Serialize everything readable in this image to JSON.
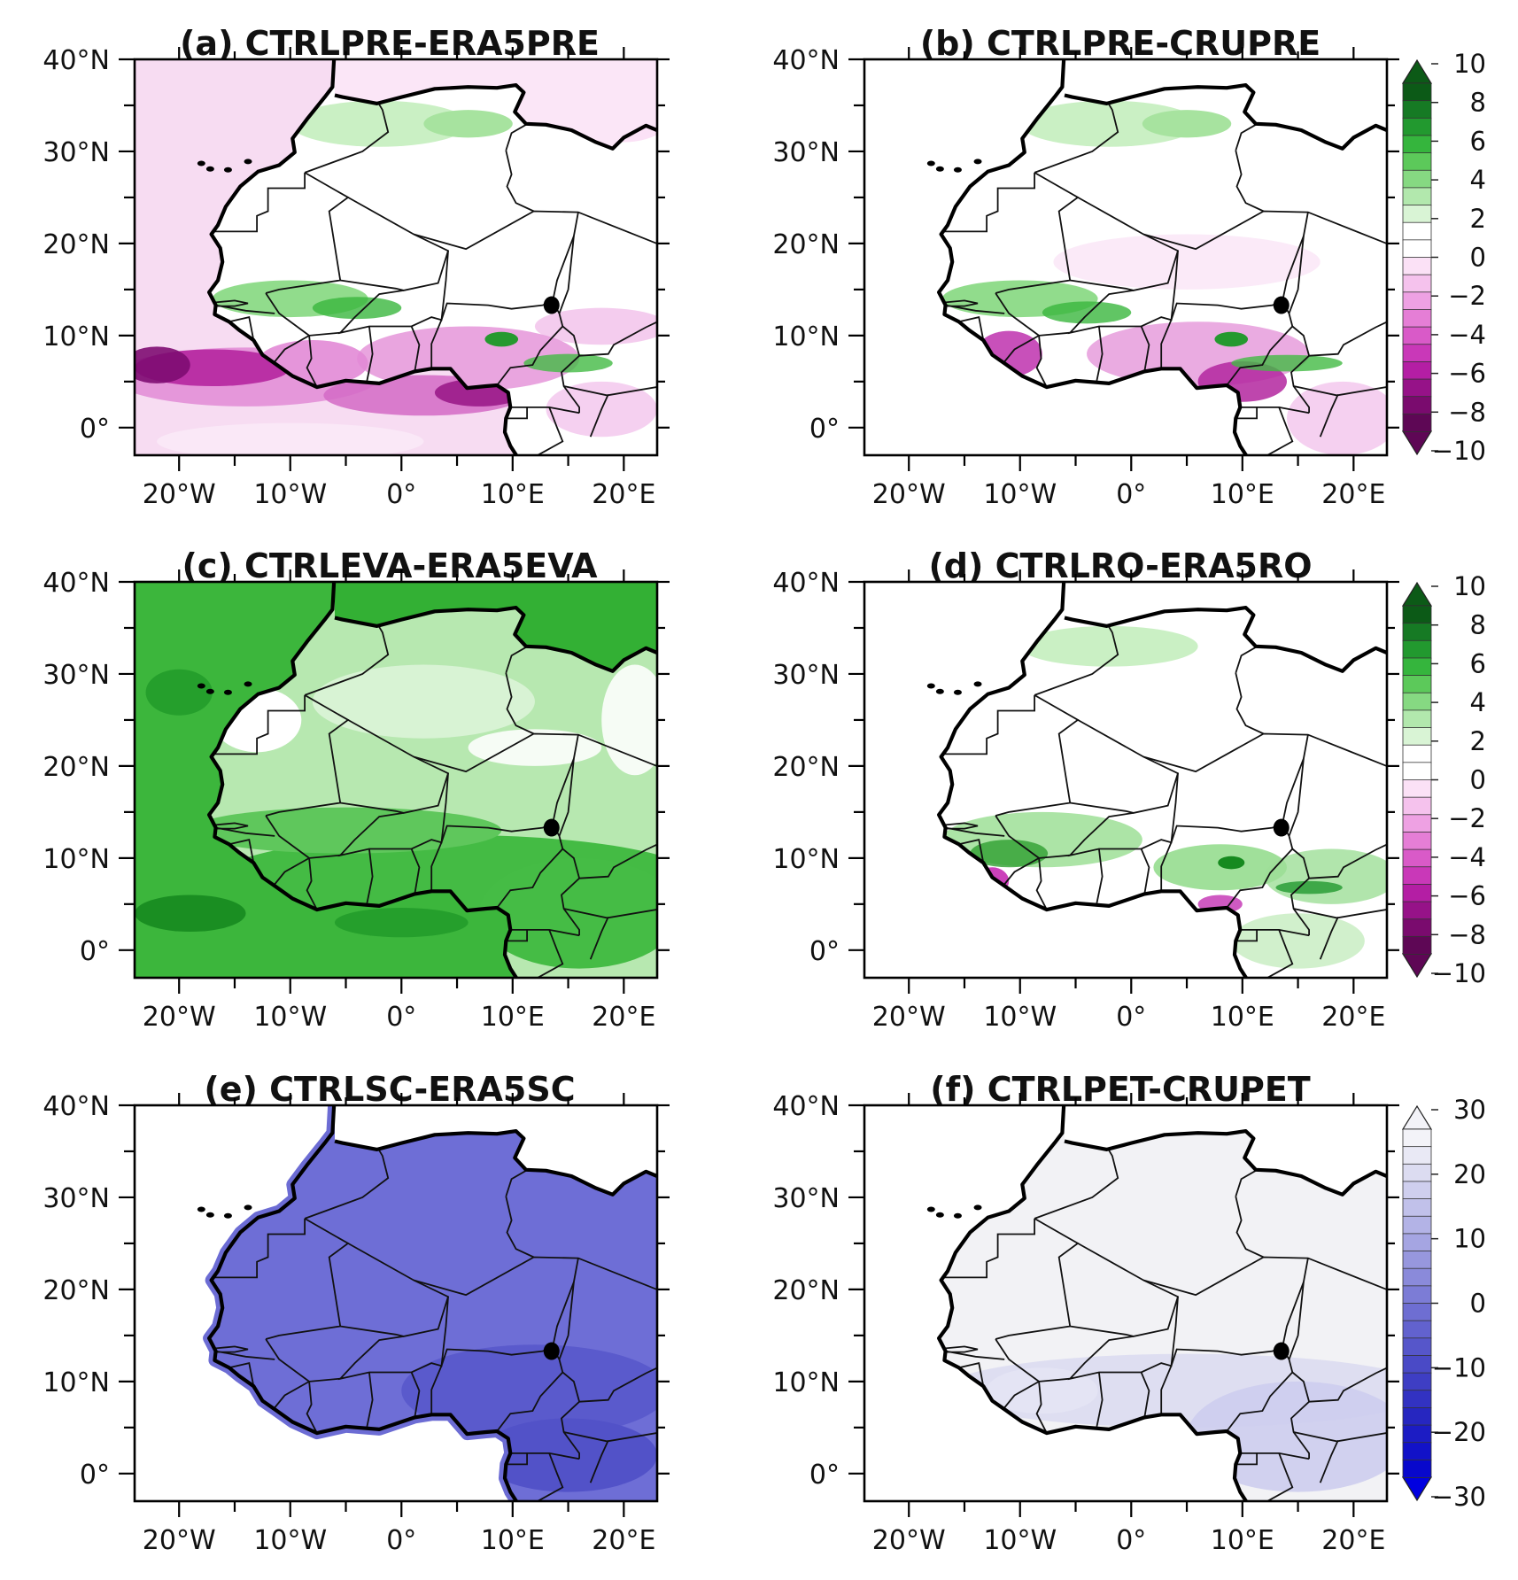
{
  "figure": {
    "lon_range": [
      -24,
      23
    ],
    "lat_range": [
      -3,
      40
    ],
    "x_ticks": [
      {
        "lon": -20,
        "label": "20°W"
      },
      {
        "lon": -10,
        "label": "10°W"
      },
      {
        "lon": 0,
        "label": "0°"
      },
      {
        "lon": 10,
        "label": "10°E"
      },
      {
        "lon": 20,
        "label": "20°E"
      }
    ],
    "y_ticks": [
      {
        "lat": 40,
        "label": "40°N"
      },
      {
        "lat": 30,
        "label": "30°N"
      },
      {
        "lat": 20,
        "label": "20°N"
      },
      {
        "lat": 10,
        "label": "10°N"
      },
      {
        "lat": 0,
        "label": "0°"
      }
    ]
  },
  "panels": [
    {
      "id": "a",
      "title": "(a) CTRLPRE-ERA5PRE",
      "field": "precip-diff-era5",
      "ocean_color": "#f2c2ea",
      "colorbar": null
    },
    {
      "id": "b",
      "title": "(b) CTRLPRE-CRUPRE",
      "field": "precip-diff-cru",
      "ocean_color": "#ffffff",
      "colorbar": "diverging_10"
    },
    {
      "id": "c",
      "title": "(c) CTRLEVA-ERA5EVA",
      "field": "evap-diff",
      "ocean_color": "#3bb53b",
      "colorbar": null
    },
    {
      "id": "d",
      "title": "(d) CTRLRO-ERA5RO",
      "field": "runoff-diff",
      "ocean_color": "#ffffff",
      "colorbar": "diverging_10"
    },
    {
      "id": "e",
      "title": "(e) CTRLSC-ERA5SC",
      "field": "soil-moisture-diff",
      "ocean_color": "#ffffff",
      "colorbar": null
    },
    {
      "id": "f",
      "title": "(f) CTRLPET-CRUPET",
      "field": "pet-diff",
      "ocean_color": "#ffffff",
      "colorbar": "blue_30"
    }
  ],
  "colorbars": {
    "diverging_10": {
      "labels": [
        "10",
        "8",
        "6",
        "4",
        "2",
        "0",
        "−2",
        "−4",
        "−6",
        "−8",
        "−10"
      ],
      "colors": [
        "#0c5a17",
        "#167a24",
        "#22992f",
        "#35b53d",
        "#5cc95a",
        "#86d982",
        "#b2e8ad",
        "#d9f4d5",
        "#ffffff",
        "#ffffff",
        "#fbe1f6",
        "#f5c2ed",
        "#eea1e3",
        "#e57ed6",
        "#d95ac8",
        "#c938b8",
        "#b41ea4",
        "#961288",
        "#7a0b6e",
        "#5e0755"
      ],
      "top_arrow": "#0c5a17",
      "bottom_arrow": "#5e0755"
    },
    "blue_30": {
      "labels": [
        "30",
        "20",
        "10",
        "0",
        "−10",
        "−20",
        "−30"
      ],
      "colors": [
        "#f3f3f8",
        "#e9e9f5",
        "#dcdcf1",
        "#cfcfee",
        "#c1c1ea",
        "#b3b3e6",
        "#a5a5e2",
        "#9797de",
        "#8a8ada",
        "#7c7cd6",
        "#6e6ed2",
        "#6262ce",
        "#5656ca",
        "#4a4ac6",
        "#3e3ec4",
        "#3232c2",
        "#2626c0",
        "#1c1cc4",
        "#1212c8",
        "#0808cc"
      ],
      "top_arrow": "#f3f3f8",
      "bottom_arrow": "#0000e0"
    }
  }
}
